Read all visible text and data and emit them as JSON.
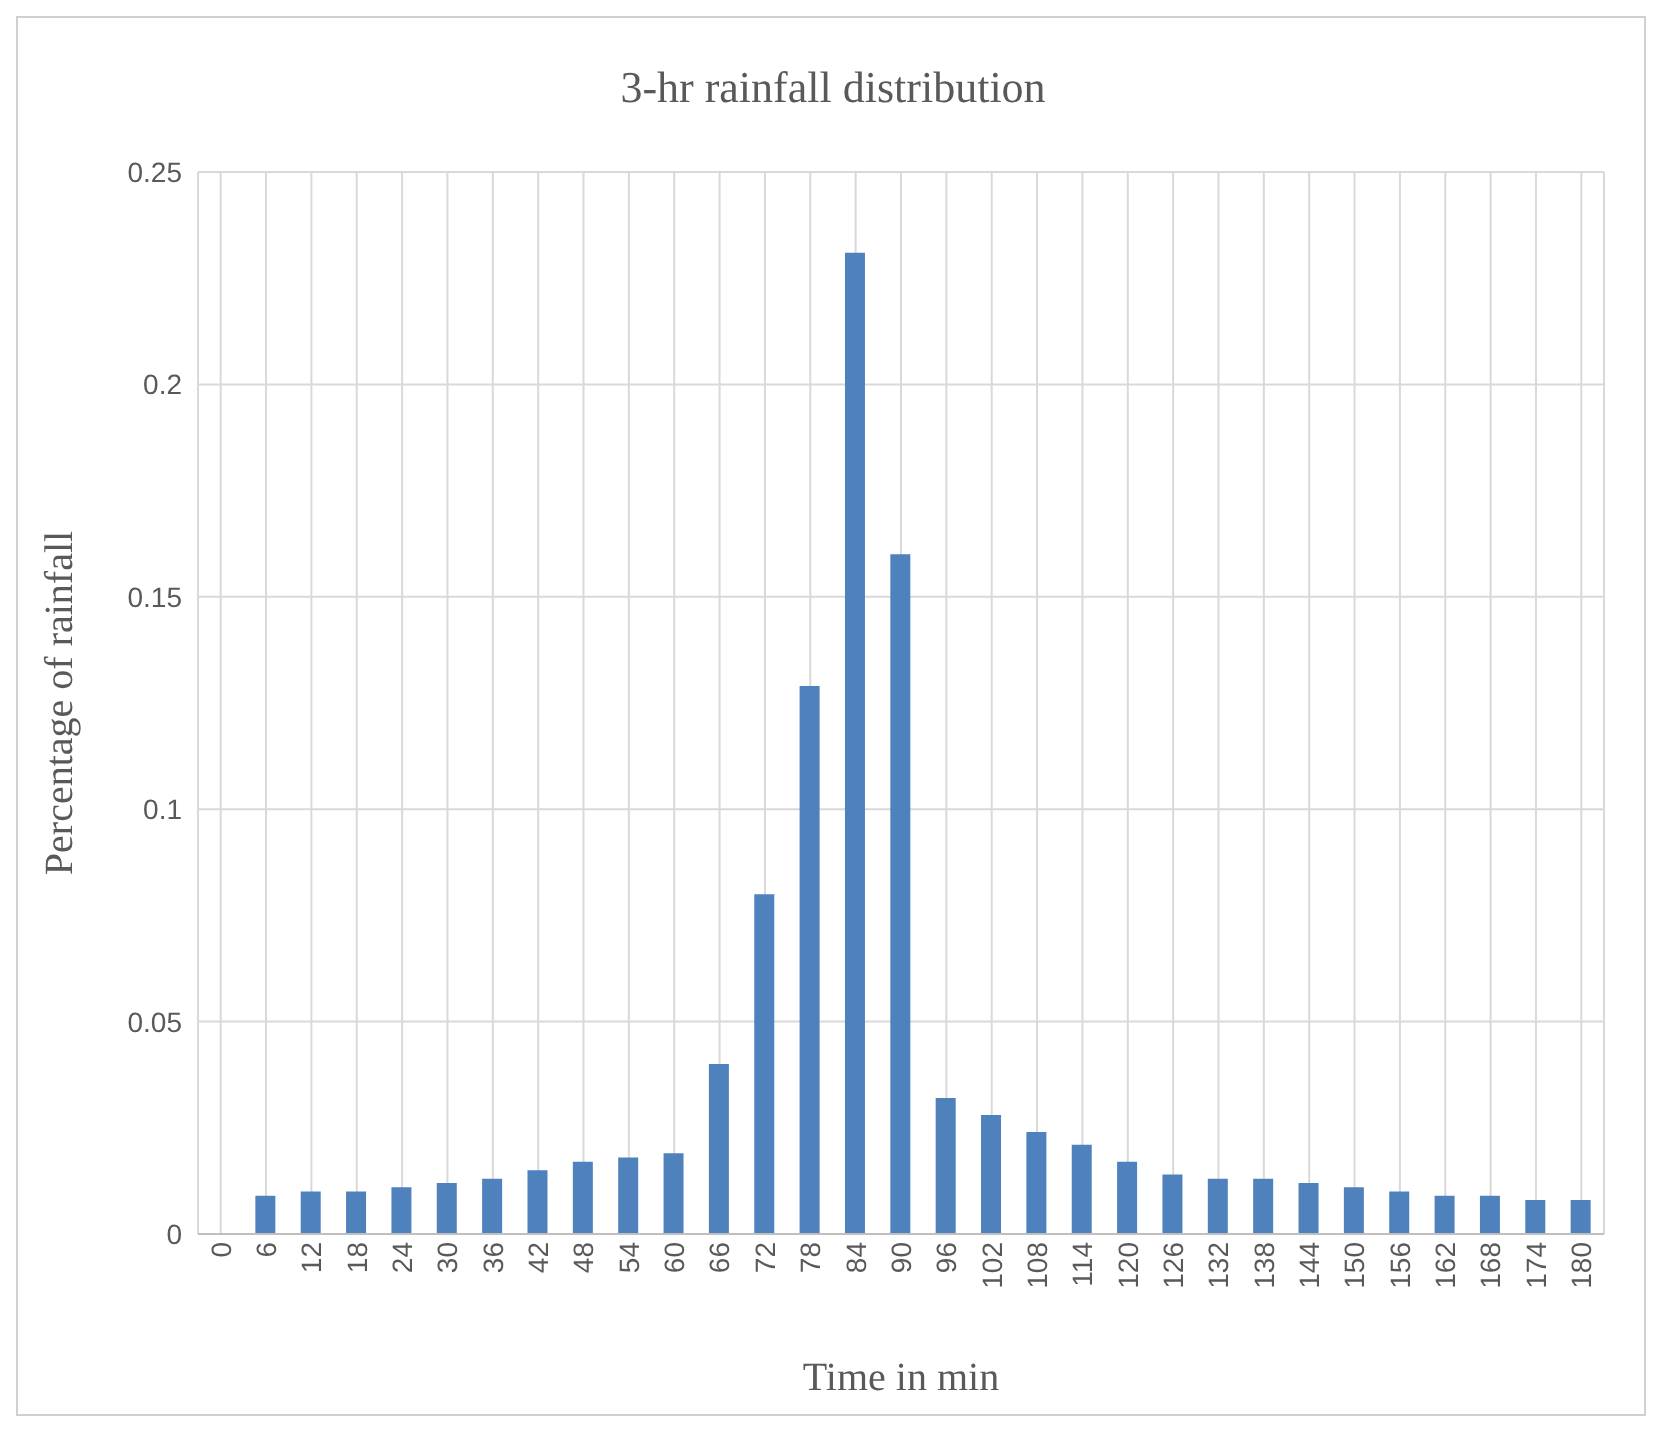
{
  "chart_data": {
    "type": "bar",
    "title": "3-hr rainfall distribution",
    "xlabel": "Time in min",
    "ylabel": "Percentage of rainfall",
    "categories": [
      "0",
      "6",
      "12",
      "18",
      "24",
      "30",
      "36",
      "42",
      "48",
      "54",
      "60",
      "66",
      "72",
      "78",
      "84",
      "90",
      "96",
      "102",
      "108",
      "114",
      "120",
      "126",
      "132",
      "138",
      "144",
      "150",
      "156",
      "162",
      "168",
      "174",
      "180"
    ],
    "values": [
      0,
      0.009,
      0.01,
      0.01,
      0.011,
      0.012,
      0.013,
      0.015,
      0.017,
      0.018,
      0.019,
      0.04,
      0.08,
      0.129,
      0.231,
      0.16,
      0.032,
      0.028,
      0.024,
      0.021,
      0.017,
      0.014,
      0.013,
      0.013,
      0.012,
      0.011,
      0.01,
      0.009,
      0.009,
      0.008,
      0.008
    ],
    "color": "#4f81bd",
    "ylim": [
      0,
      0.25
    ],
    "yticks": [
      0,
      0.05,
      0.1,
      0.15,
      0.2,
      0.25
    ],
    "grid": true
  }
}
